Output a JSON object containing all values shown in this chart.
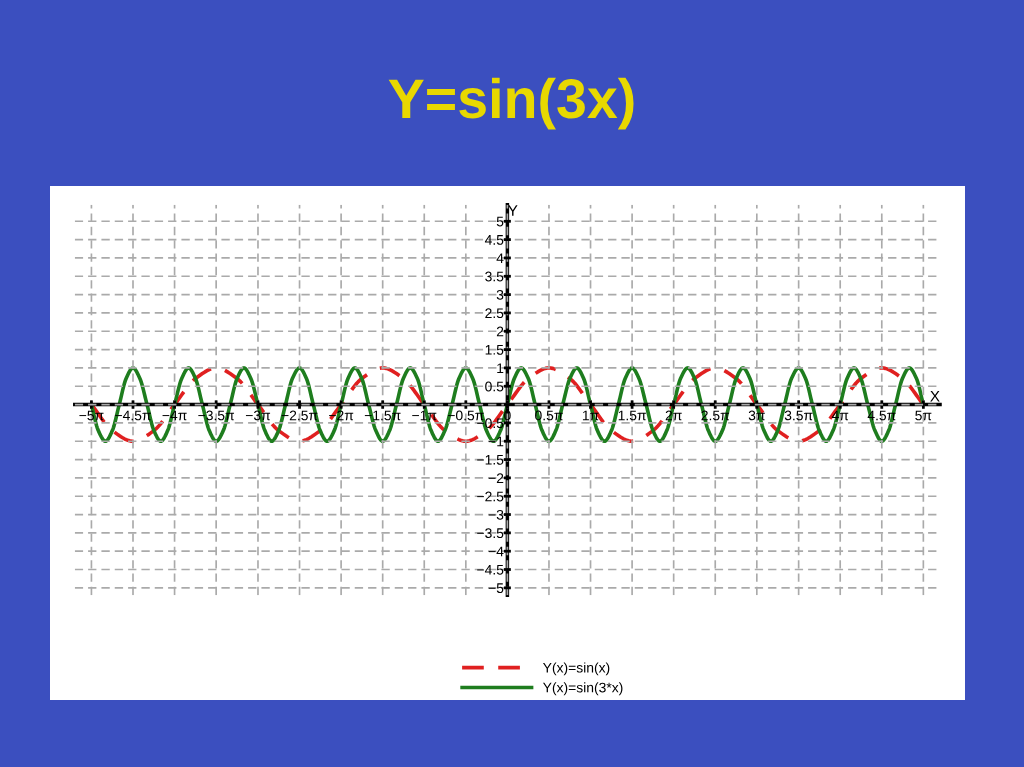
{
  "chart_data": {
    "type": "line",
    "title": "Y=sin(3x)",
    "xlabel": "X",
    "ylabel": "Y",
    "xlim": [
      -16.34,
      16.34
    ],
    "ylim": [
      -5.2,
      5.45
    ],
    "xticks": [
      {
        "value": -15.71,
        "label": "−5π"
      },
      {
        "value": -14.14,
        "label": "−4.5π"
      },
      {
        "value": -12.57,
        "label": "−4π"
      },
      {
        "value": -11.0,
        "label": "−3.5π"
      },
      {
        "value": -9.42,
        "label": "−3π"
      },
      {
        "value": -7.85,
        "label": "−2.5π"
      },
      {
        "value": -6.28,
        "label": "−2π"
      },
      {
        "value": -4.71,
        "label": "−1.5π"
      },
      {
        "value": -3.14,
        "label": "−1π"
      },
      {
        "value": -1.57,
        "label": "−0.5π"
      },
      0,
      {
        "value": 1.57,
        "label": "0.5π"
      },
      {
        "value": 3.14,
        "label": "1π"
      },
      {
        "value": 4.71,
        "label": "1.5π"
      },
      {
        "value": 6.28,
        "label": "2π"
      },
      {
        "value": 7.85,
        "label": "2.5π"
      },
      {
        "value": 9.42,
        "label": "3π"
      },
      {
        "value": 11.0,
        "label": "3.5π"
      },
      {
        "value": 12.57,
        "label": "4π"
      },
      {
        "value": 14.14,
        "label": "4.5π"
      },
      {
        "value": 15.71,
        "label": "5π"
      }
    ],
    "yticks": [
      {
        "value": -5,
        "label": "−5"
      },
      {
        "value": -4.5,
        "label": "−4.5"
      },
      {
        "value": -4,
        "label": "−4"
      },
      {
        "value": -3.5,
        "label": "−3.5"
      },
      {
        "value": -3,
        "label": "−3"
      },
      {
        "value": -2.5,
        "label": "−2.5"
      },
      {
        "value": -2,
        "label": "−2"
      },
      {
        "value": -1.5,
        "label": "−1.5"
      },
      {
        "value": -1,
        "label": "−1"
      },
      {
        "value": -0.5,
        "label": "−0.5"
      },
      {
        "value": 0,
        "label": null
      },
      0.5,
      1,
      1.5,
      2,
      2.5,
      3,
      3.5,
      4,
      4.5,
      5
    ],
    "grid": true,
    "legend": "bottom",
    "series": [
      {
        "name": "Y(x)=sin(x)",
        "color": "#e02020",
        "line_style": "dashed",
        "x": [
          -15.71,
          -14.92,
          -14.14,
          -13.35,
          -12.57,
          -11.78,
          -11.0,
          -10.21,
          -9.42,
          -8.64,
          -7.85,
          -7.07,
          -6.28,
          -5.5,
          -4.71,
          -3.93,
          -3.14,
          -2.36,
          -1.57,
          -0.79,
          0,
          0.79,
          1.57,
          2.36,
          3.14,
          3.93,
          4.71,
          5.5,
          6.28,
          7.07,
          7.85,
          8.64,
          9.42,
          10.21,
          11.0,
          11.78,
          12.57,
          13.35,
          14.14,
          14.92,
          15.71
        ],
        "values": [
          0,
          -0.71,
          -1,
          -0.71,
          0,
          0.71,
          1,
          0.71,
          0,
          -0.71,
          -1,
          -0.71,
          0,
          0.71,
          1,
          0.71,
          0,
          -0.71,
          -1,
          -0.71,
          0,
          0.71,
          1,
          0.71,
          0,
          -0.71,
          -1,
          -0.71,
          0,
          0.71,
          1,
          0.71,
          0,
          -0.71,
          -1,
          -0.71,
          0,
          0.71,
          1,
          0.71,
          0
        ]
      },
      {
        "name": "Y(x)=sin(3*x)",
        "color": "#1e7d1e",
        "line_style": "solid",
        "x": [
          -15.71,
          -15.45,
          -15.18,
          -14.92,
          -14.66,
          -14.4,
          -14.14,
          -13.88,
          -13.61,
          -13.35,
          -13.09,
          -12.83,
          -12.57,
          -12.3,
          -12.04,
          -11.78,
          -11.52,
          -11.26,
          -11.0,
          -10.73,
          -10.47,
          -10.21,
          -9.95,
          -9.69,
          -9.42,
          -9.16,
          -8.9,
          -8.64,
          -8.38,
          -8.12,
          -7.85,
          -7.59,
          -7.33,
          -7.07,
          -6.81,
          -6.54,
          -6.28,
          -6.02,
          -5.76,
          -5.5,
          -5.24,
          -4.97,
          -4.71,
          -4.45,
          -4.19,
          -3.93,
          -3.67,
          -3.4,
          -3.14,
          -2.88,
          -2.62,
          -2.36,
          -2.09,
          -1.83,
          -1.57,
          -1.31,
          -1.05,
          -0.79,
          -0.52,
          -0.26,
          0,
          0.26,
          0.52,
          0.79,
          1.05,
          1.31,
          1.57,
          1.83,
          2.09,
          2.36,
          2.62,
          2.88,
          3.14,
          3.4,
          3.67,
          3.93,
          4.19,
          4.45,
          4.71,
          4.97,
          5.24,
          5.5,
          5.76,
          6.02,
          6.28,
          6.54,
          6.81,
          7.07,
          7.33,
          7.59,
          7.85,
          8.12,
          8.38,
          8.64,
          8.9,
          9.16,
          9.42,
          9.69,
          9.95,
          10.21,
          10.47,
          10.73,
          11.0,
          11.26,
          11.52,
          11.78,
          12.04,
          12.3,
          12.57,
          12.83,
          13.09,
          13.35,
          13.61,
          13.88,
          14.14,
          14.4,
          14.66,
          14.92,
          15.18,
          15.45,
          15.71
        ],
        "values": [
          0,
          -0.71,
          -1,
          -0.71,
          0,
          0.71,
          1,
          0.71,
          0,
          -0.71,
          -1,
          -0.71,
          0,
          0.71,
          1,
          0.71,
          0,
          -0.71,
          -1,
          -0.71,
          0,
          0.71,
          1,
          0.71,
          0,
          -0.71,
          -1,
          -0.71,
          0,
          0.71,
          1,
          0.71,
          0,
          -0.71,
          -1,
          -0.71,
          0,
          0.71,
          1,
          0.71,
          0,
          -0.71,
          -1,
          -0.71,
          0,
          0.71,
          1,
          0.71,
          0,
          -0.71,
          -1,
          -0.71,
          0,
          0.71,
          1,
          0.71,
          0,
          -0.71,
          -1,
          -0.71,
          0,
          0.71,
          1,
          0.71,
          0,
          -0.71,
          -1,
          -0.71,
          0,
          0.71,
          1,
          0.71,
          0,
          -0.71,
          -1,
          -0.71,
          0,
          0.71,
          1,
          0.71,
          0,
          -0.71,
          -1,
          -0.71,
          0,
          0.71,
          1,
          0.71,
          0,
          -0.71,
          -1,
          -0.71,
          0,
          0.71,
          1,
          0.71,
          0,
          -0.71,
          -1,
          -0.71,
          0,
          0.71,
          1,
          0.71,
          0,
          -0.71,
          -1,
          -0.71,
          0,
          0.71,
          1,
          0.71,
          0,
          -0.71,
          -1,
          -0.71,
          0,
          0.71,
          1,
          0.71,
          0
        ]
      }
    ]
  }
}
